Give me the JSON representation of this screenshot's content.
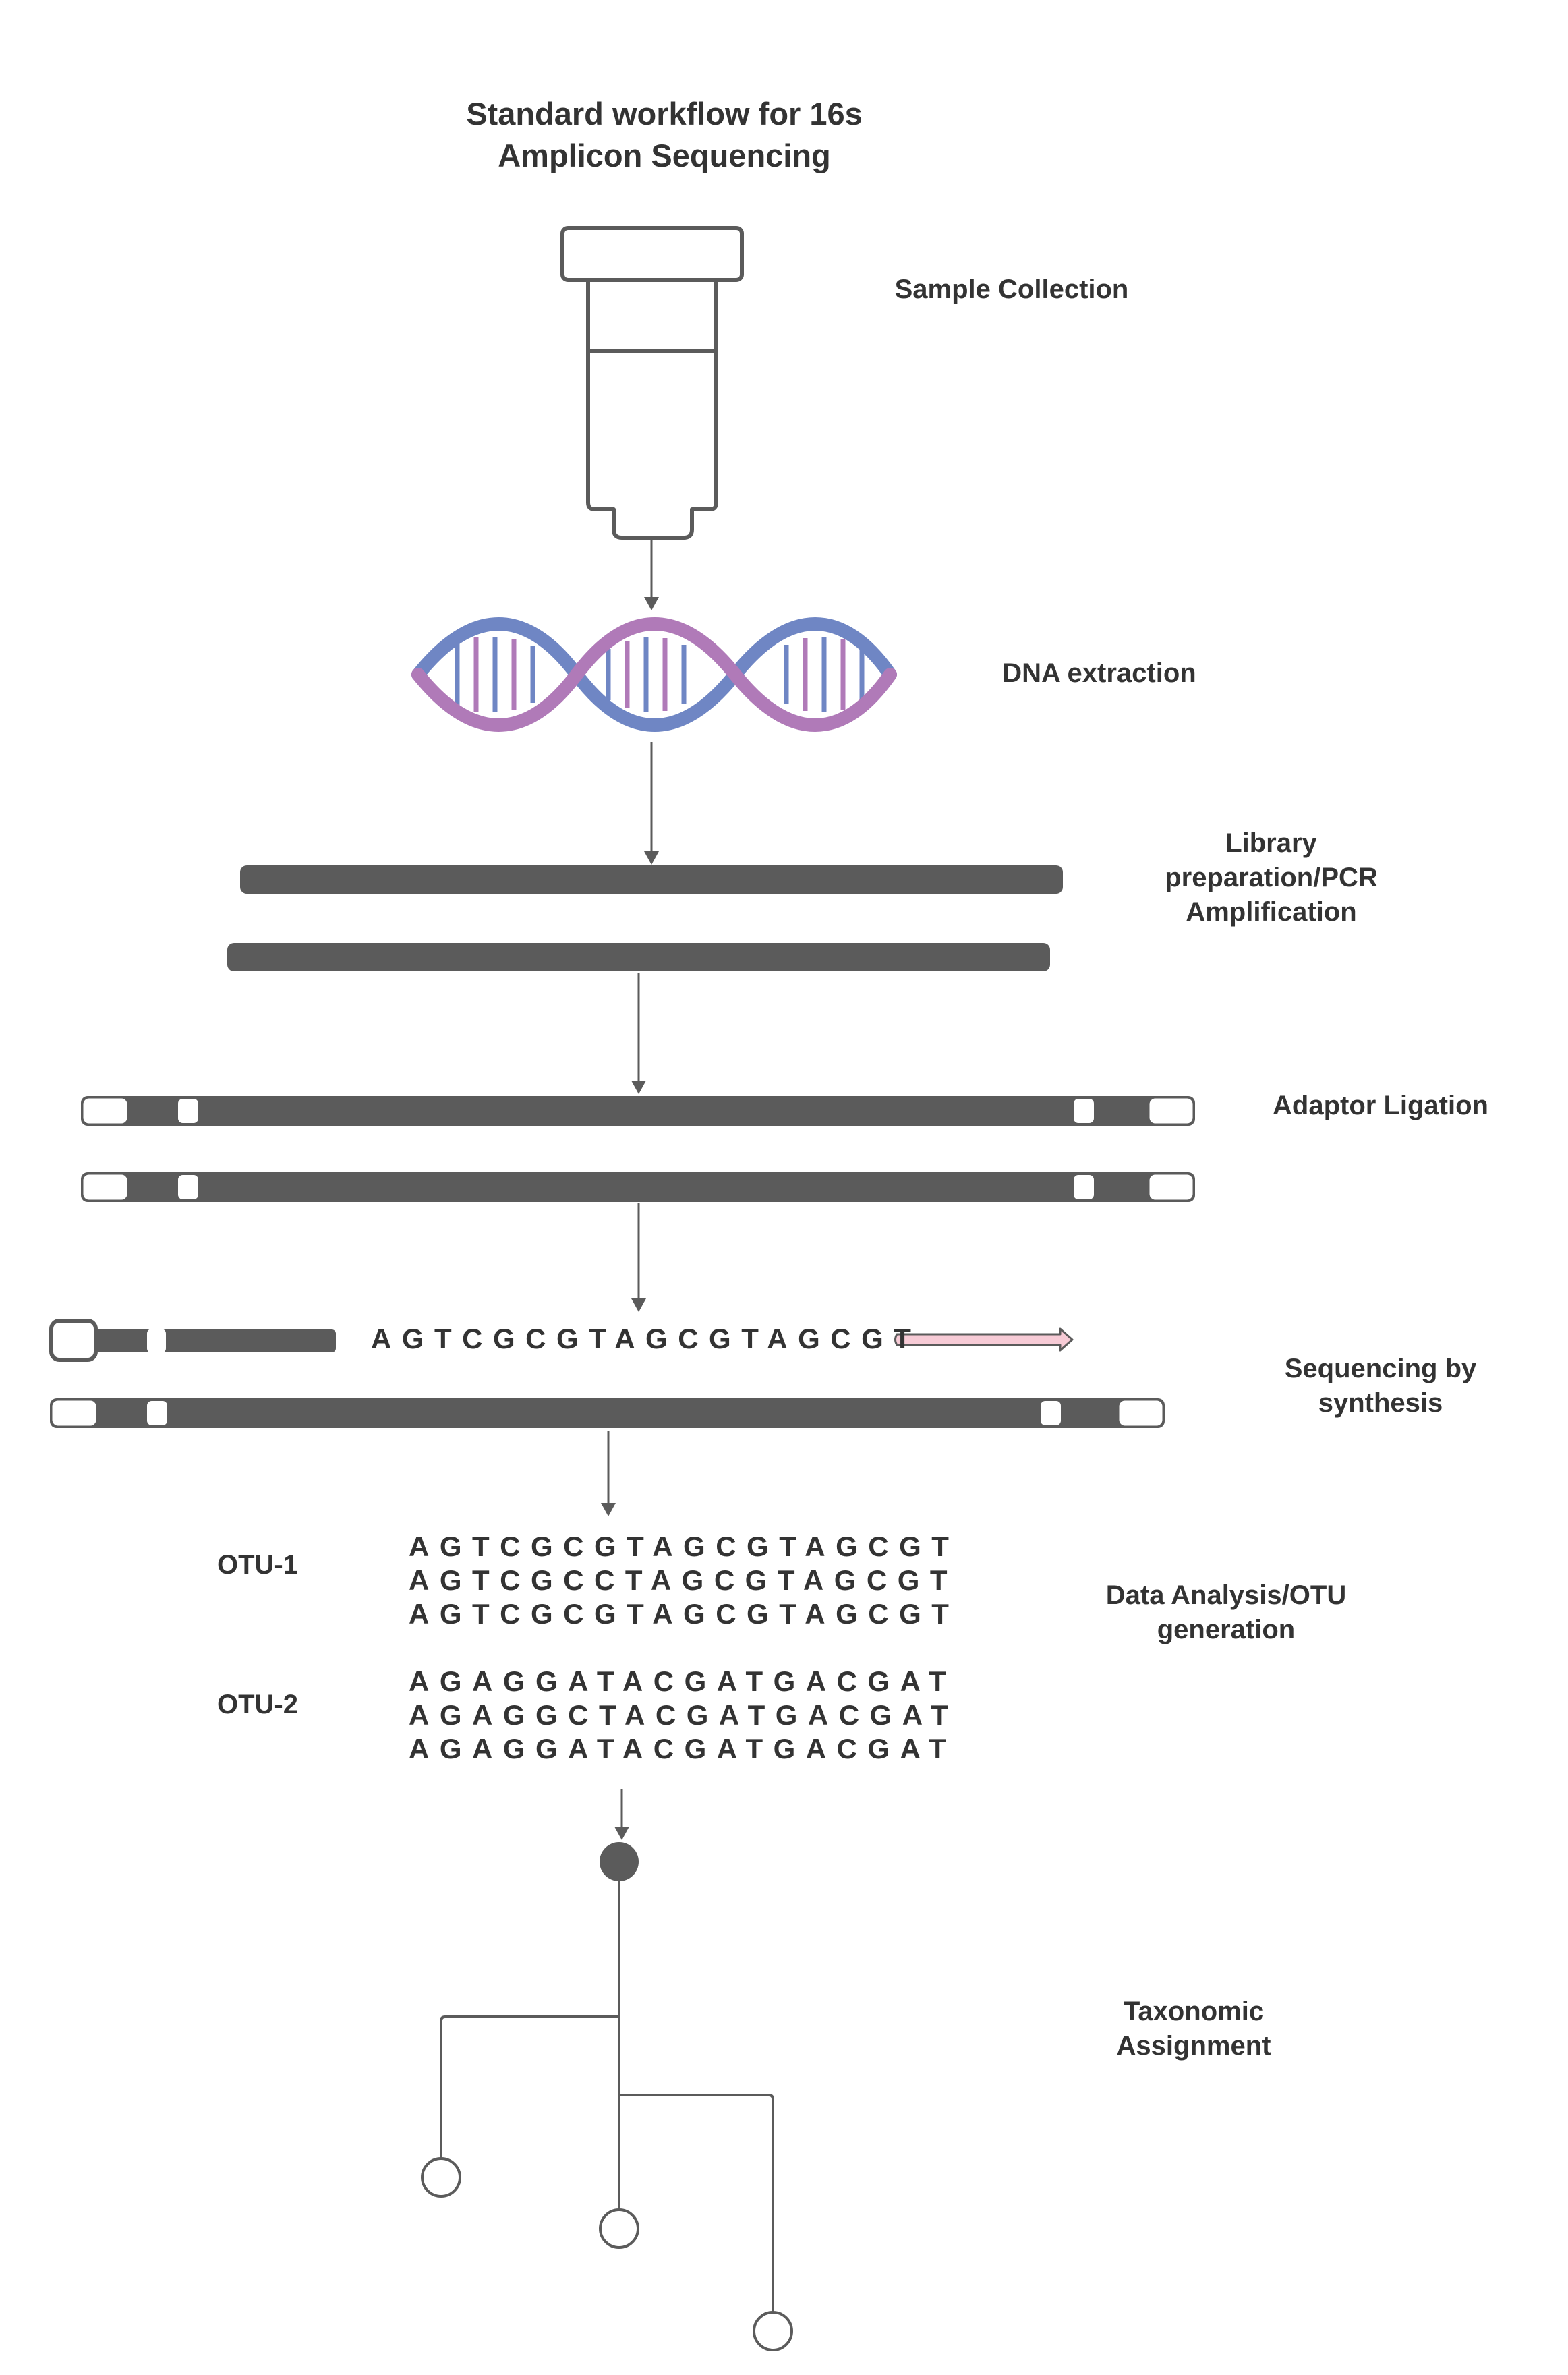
{
  "title_line1": "Standard workflow for 16s",
  "title_line2": "Amplicon Sequencing",
  "steps": {
    "sample_collection": "Sample Collection",
    "dna_extraction": "DNA extraction",
    "library_prep_line1": "Library",
    "library_prep_line2": "preparation/PCR",
    "library_prep_line3": "Amplification",
    "adaptor_ligation": "Adaptor Ligation",
    "sequencing_line1": "Sequencing by",
    "sequencing_line2": "synthesis",
    "data_analysis_line1": "Data Analysis/OTU",
    "data_analysis_line2": "generation",
    "taxonomic_line1": "Taxonomic",
    "taxonomic_line2": "Assignment"
  },
  "sequencing_read": "AGTCGCGTAGCGTAGCGT",
  "otus": [
    {
      "label": "OTU-1",
      "sequences": [
        "AGTCGCGTAGCGTAGCGT",
        "AGTCGCCTAGCGTAGCGT",
        "AGTCGCGTAGCGTAGCGT"
      ]
    },
    {
      "label": "OTU-2",
      "sequences": [
        "AGAGGATACGATGACGAT",
        "AGAGGCTACGATGACGAT",
        "AGAGGATACGATGACGAT"
      ]
    }
  ],
  "colors": {
    "strand": "#5b5b5b",
    "dna_blue": "#6f86c4",
    "dna_purple": "#b07ab8",
    "primer_pink": "#f7cbd6",
    "text": "#333333"
  }
}
